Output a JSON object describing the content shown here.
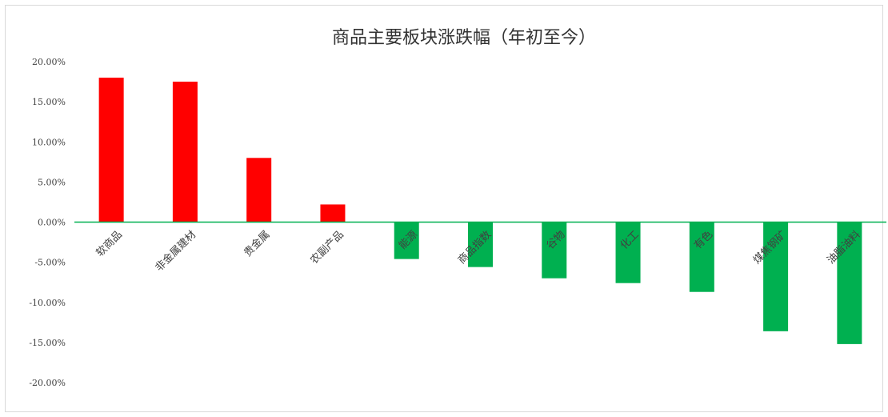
{
  "chart_data": {
    "type": "bar",
    "title": "商品主要板块涨跌幅（年初至今）",
    "categories": [
      "软商品",
      "非金属建材",
      "贵金属",
      "农副产品",
      "能源",
      "商品指数",
      "谷物",
      "化工",
      "有色",
      "煤焦钢矿",
      "油脂油料"
    ],
    "values": [
      18.0,
      17.5,
      8.0,
      2.2,
      -4.6,
      -5.6,
      -7.0,
      -7.6,
      -8.7,
      -13.6,
      -15.2
    ],
    "ylim": [
      -20,
      20
    ],
    "yticks": [
      20,
      15,
      10,
      5,
      0,
      -5,
      -10,
      -15,
      -20
    ],
    "ytick_labels": [
      "20.00%",
      "15.00%",
      "10.00%",
      "5.00%",
      "0.00%",
      "-5.00%",
      "-10.00%",
      "-15.00%",
      "-20.00%"
    ],
    "xlabel": "",
    "ylabel": "",
    "grid": false,
    "colors": {
      "positive": "#ff0000",
      "negative": "#00b050",
      "axis": "#00b050"
    }
  }
}
